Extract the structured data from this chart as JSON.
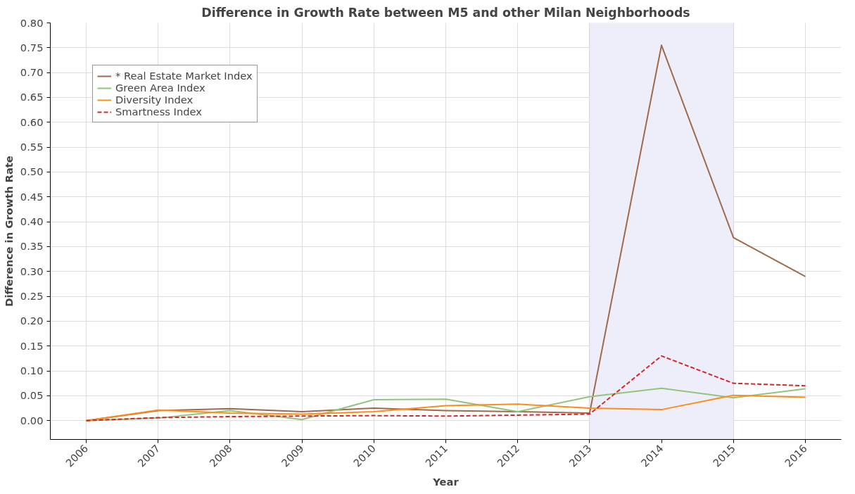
{
  "chart_data": {
    "type": "line",
    "title": "Difference in Growth Rate between M5 and other Milan Neighborhoods",
    "xlabel": "Year",
    "ylabel": "Difference in Growth Rate",
    "x": [
      2006,
      2007,
      2008,
      2009,
      2010,
      2011,
      2012,
      2013,
      2014,
      2015,
      2016
    ],
    "series": [
      {
        "name": "* Real Estate Market Index",
        "color": "#a0694a",
        "values": [
          0.0,
          0.02,
          0.024,
          0.018,
          0.025,
          0.02,
          0.018,
          0.015,
          0.755,
          0.368,
          0.29
        ]
      },
      {
        "name": "Green Area Index",
        "color": "#93c47d",
        "values": [
          0.0,
          0.005,
          0.02,
          0.002,
          0.042,
          0.043,
          0.018,
          0.048,
          0.065,
          0.046,
          0.064
        ]
      },
      {
        "name": "Diversity Index",
        "color": "#ff8c1a",
        "values": [
          0.0,
          0.021,
          0.015,
          0.013,
          0.018,
          0.03,
          0.033,
          0.025,
          0.022,
          0.051,
          0.047
        ]
      },
      {
        "name": "Smartness Index",
        "color": "#d62728",
        "line_style": "dashed",
        "values": [
          0.0,
          0.006,
          0.008,
          0.009,
          0.01,
          0.009,
          0.011,
          0.013,
          0.13,
          0.075,
          0.07
        ]
      }
    ],
    "bands": [
      {
        "axis": "x",
        "from": 2013,
        "to": 2015,
        "color": "#eeeefa"
      }
    ],
    "xlim": [
      2005.5,
      2016.5
    ],
    "xticks": [
      2006,
      2007,
      2008,
      2009,
      2010,
      2011,
      2012,
      2013,
      2014,
      2015,
      2016
    ],
    "ylim": [
      -0.038,
      0.8
    ],
    "yticks": [
      {
        "value": 0,
        "label": "0.00"
      },
      {
        "value": 0.05,
        "label": "0.05"
      },
      {
        "value": 0.1,
        "label": "0.10"
      },
      {
        "value": 0.15,
        "label": "0.15"
      },
      {
        "value": 0.2,
        "label": "0.20"
      },
      {
        "value": 0.25,
        "label": "0.25"
      },
      {
        "value": 0.3,
        "label": "0.30"
      },
      {
        "value": 0.35,
        "label": "0.35"
      },
      {
        "value": 0.4,
        "label": "0.40"
      },
      {
        "value": 0.45,
        "label": "0.45"
      },
      {
        "value": 0.5,
        "label": "0.50"
      },
      {
        "value": 0.55,
        "label": "0.55"
      },
      {
        "value": 0.6,
        "label": "0.60"
      },
      {
        "value": 0.65,
        "label": "0.65"
      },
      {
        "value": 0.7,
        "label": "0.70"
      },
      {
        "value": 0.75,
        "label": "0.75"
      },
      {
        "value": 0.8,
        "label": "0.80"
      }
    ],
    "grid": true,
    "legend": "top left"
  }
}
